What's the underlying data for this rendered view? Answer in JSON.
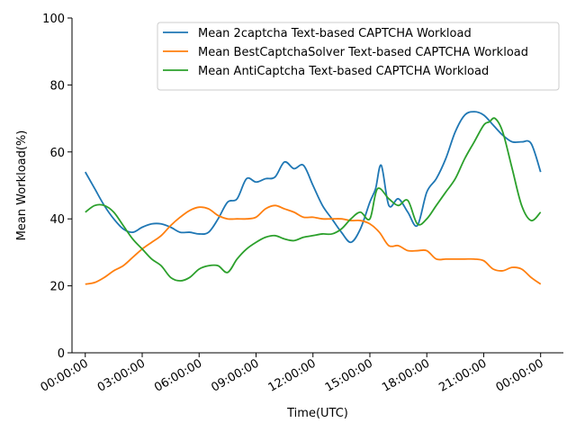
{
  "chart_data": {
    "type": "line",
    "xlabel": "Time(UTC)",
    "ylabel": "Mean Workload(%)",
    "ylim": [
      0,
      100
    ],
    "xlim": [
      -0.7,
      25.2
    ],
    "x_ticks": [
      0,
      3,
      6,
      9,
      12,
      15,
      18,
      21,
      24
    ],
    "x_tick_labels": [
      "00:00:00",
      "03:00:00",
      "06:00:00",
      "09:00:00",
      "12:00:00",
      "15:00:00",
      "18:00:00",
      "21:00:00",
      "00:00:00"
    ],
    "y_ticks": [
      0,
      20,
      40,
      60,
      80,
      100
    ],
    "y_tick_labels": [
      "0",
      "20",
      "40",
      "60",
      "80",
      "100"
    ],
    "grid": false,
    "legend_position": "top-right",
    "x_unit": "hours since 00:00:00 UTC",
    "series": [
      {
        "name": "Mean 2captcha Text-based CAPTCHA Workload",
        "color": "#1f77b4",
        "x": [
          0,
          0.5,
          1,
          1.5,
          2,
          2.5,
          3,
          3.5,
          4,
          4.5,
          5,
          5.5,
          6,
          6.5,
          7,
          7.5,
          8,
          8.5,
          9,
          9.5,
          10,
          10.5,
          11,
          11.5,
          12,
          12.5,
          13,
          13.5,
          14,
          14.5,
          15,
          15.3,
          15.6,
          16,
          16.5,
          17,
          17.5,
          18,
          18.5,
          19,
          19.5,
          20,
          20.5,
          21,
          21.5,
          22,
          22.5,
          23,
          23.5,
          24
        ],
        "values": [
          54,
          49,
          44,
          40,
          37,
          36,
          37.5,
          38.5,
          38.5,
          37.5,
          36,
          36,
          35.5,
          36,
          40,
          45,
          46,
          52,
          51,
          52,
          52.5,
          57,
          55,
          56,
          50,
          44,
          40,
          36,
          33,
          37,
          45,
          49,
          56,
          44,
          46,
          42,
          38,
          48,
          52,
          58,
          66,
          71,
          72,
          71,
          68,
          65,
          63,
          63,
          62.5,
          54
        ]
      },
      {
        "name": "Mean BestCaptchaSolver Text-based CAPTCHA Workload",
        "color": "#ff7f0e",
        "x": [
          0,
          0.5,
          1,
          1.5,
          2,
          2.5,
          3,
          3.5,
          4,
          4.5,
          5,
          5.5,
          6,
          6.5,
          7,
          7.5,
          8,
          8.5,
          9,
          9.5,
          10,
          10.5,
          11,
          11.5,
          12,
          12.5,
          13,
          13.5,
          14,
          14.5,
          15,
          15.5,
          16,
          16.5,
          17,
          17.5,
          18,
          18.5,
          19,
          19.5,
          20,
          20.5,
          21,
          21.5,
          22,
          22.5,
          23,
          23.5,
          24
        ],
        "values": [
          20.5,
          21,
          22.5,
          24.5,
          26,
          28.5,
          31,
          33,
          35,
          38,
          40.5,
          42.5,
          43.5,
          43,
          41,
          40,
          40,
          40,
          40.5,
          43,
          44,
          43,
          42,
          40.5,
          40.5,
          40,
          40,
          40,
          39.5,
          39.5,
          38.5,
          36,
          32,
          32,
          30.5,
          30.5,
          30.5,
          28,
          28,
          28,
          28,
          28,
          27.5,
          25,
          24.5,
          25.5,
          25,
          22.5,
          20.5
        ]
      },
      {
        "name": "Mean AntiCaptcha Text-based CAPTCHA Workload",
        "color": "#2ca02c",
        "x": [
          0,
          0.5,
          1,
          1.5,
          2,
          2.5,
          3,
          3.5,
          4,
          4.5,
          5,
          5.5,
          6,
          6.5,
          7,
          7.5,
          8,
          8.5,
          9,
          9.5,
          10,
          10.5,
          11,
          11.5,
          12,
          12.5,
          13,
          13.5,
          14,
          14.5,
          15,
          15.4,
          16,
          16.5,
          17,
          17.5,
          18,
          18.5,
          19,
          19.5,
          20,
          20.5,
          21,
          21.3,
          21.6,
          22,
          22.5,
          23,
          23.5,
          24
        ],
        "values": [
          42,
          44,
          44,
          42,
          38,
          34,
          31,
          28,
          26,
          22.5,
          21.5,
          22.5,
          25,
          26,
          26,
          24,
          28,
          31,
          33,
          34.5,
          35,
          34,
          33.5,
          34.5,
          35,
          35.5,
          35.5,
          37,
          40,
          42,
          40,
          49,
          46,
          44,
          45.5,
          38.5,
          40,
          44,
          48,
          52,
          58,
          63,
          68,
          69,
          70,
          66,
          55,
          44,
          39.5,
          42
        ]
      }
    ]
  }
}
